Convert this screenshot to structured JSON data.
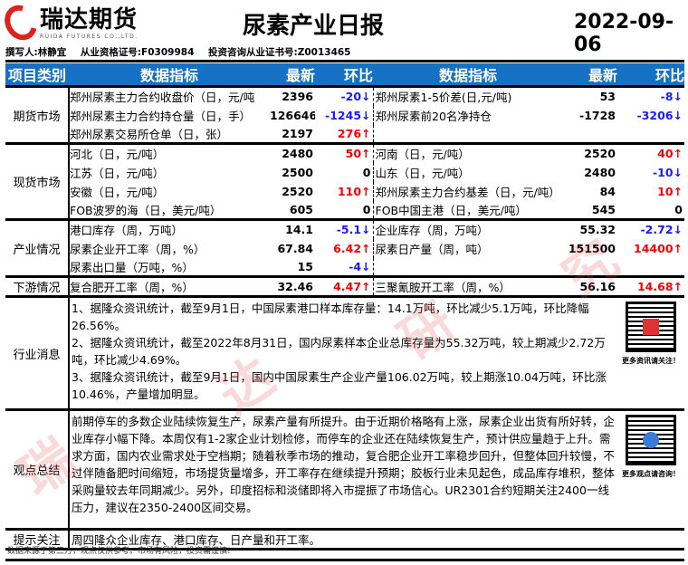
{
  "header": {
    "logo_cn": "瑞达期货",
    "logo_en": "RUIDA FUTURES CO.,LTD.",
    "title": "尿素产业日报",
    "date": "2022-09-06",
    "author": "撰写人:林静宜",
    "qualification": "从业资格证号:F0309984",
    "advisory": "投资咨询从业证书号:Z0013465"
  },
  "columns": {
    "category": "项目类别",
    "metric": "数据指标",
    "latest": "最新",
    "change": "环比"
  },
  "sections": [
    {
      "category": "期货市场",
      "rows": [
        {
          "l": {
            "name": "郑州尿素主力合约收盘价（日，元/吨",
            "value": "2396",
            "change": "-20↓",
            "dir": "down"
          },
          "r": {
            "name": "郑州尿素1-5价差(日,元/吨)",
            "value": "53",
            "change": "-8↓",
            "dir": "down"
          }
        },
        {
          "l": {
            "name": "郑州尿素主力合约持仓量（日，手）",
            "value": "126646",
            "change": "-1245↓",
            "dir": "down"
          },
          "r": {
            "name": "郑州尿素前20名净持仓",
            "value": "-1728",
            "change": "-3206↓",
            "dir": "down"
          }
        },
        {
          "l": {
            "name": "郑州尿素交易所仓单（日，张）",
            "value": "2197",
            "change": "276↑",
            "dir": "up"
          },
          "r": {
            "name": "",
            "value": "",
            "change": "",
            "dir": "flat"
          }
        }
      ]
    },
    {
      "category": "现货市场",
      "rows": [
        {
          "l": {
            "name": "河北（日，元/吨）",
            "value": "2480",
            "change": "50↑",
            "dir": "up"
          },
          "r": {
            "name": "河南（日，元/吨）",
            "value": "2520",
            "change": "40↑",
            "dir": "up"
          }
        },
        {
          "l": {
            "name": "江苏（日，元/吨）",
            "value": "2500",
            "change": "0",
            "dir": "flat"
          },
          "r": {
            "name": "山东（日，元/吨）",
            "value": "2480",
            "change": "-10↓",
            "dir": "down"
          }
        },
        {
          "l": {
            "name": "安徽（日，元/吨）",
            "value": "2520",
            "change": "110↑",
            "dir": "up"
          },
          "r": {
            "name": "郑州尿素主力合约基差（日，元/吨）",
            "value": "84",
            "change": "10↑",
            "dir": "up"
          }
        },
        {
          "l": {
            "name": "FOB波罗的海（日，美元/吨）",
            "value": "605",
            "change": "0",
            "dir": "flat"
          },
          "r": {
            "name": "FOB中国主港（日，美元/吨）",
            "value": "545",
            "change": "0",
            "dir": "flat"
          }
        }
      ]
    },
    {
      "category": "产业情况",
      "rows": [
        {
          "l": {
            "name": "港口库存（周，万吨）",
            "value": "14.1",
            "change": "-5.1↓",
            "dir": "down"
          },
          "r": {
            "name": "企业库存（周，万吨）",
            "value": "55.32",
            "change": "-2.72↓",
            "dir": "down"
          }
        },
        {
          "l": {
            "name": "尿素企业开工率（周，%）",
            "value": "67.84",
            "change": "6.42↑",
            "dir": "up"
          },
          "r": {
            "name": "尿素日产量（周，吨）",
            "value": "151500",
            "change": "14400↑",
            "dir": "up"
          }
        },
        {
          "l": {
            "name": "尿素出口量（万吨，%）",
            "value": "15",
            "change": "-4↓",
            "dir": "down"
          },
          "r": {
            "name": "",
            "value": "",
            "change": "",
            "dir": "flat"
          }
        }
      ]
    },
    {
      "category": "下游情况",
      "rows": [
        {
          "l": {
            "name": "复合肥开工率（周，%）",
            "value": "32.46",
            "change": "4.47↑",
            "dir": "up"
          },
          "r": {
            "name": "三聚氰胺开工率（周，%）",
            "value": "56.16",
            "change": "14.68↑",
            "dir": "up"
          }
        }
      ]
    }
  ],
  "news": {
    "category": "行业消息",
    "items": [
      "1、据隆众资讯统计，截至9月1日，中国尿素港口样本库存量：14.1万吨，环比减少5.1万吨，环比降幅26.56%。",
      "2、据隆众资讯统计，截至2022年8月31日，国内尿素样本企业总库存量为55.32万吨，较上期减少2.72万吨，环比减少4.69%。",
      "3、据隆众资讯统计，截至9月1日，国内中国尿素生产企业产量106.02万吨，较上期涨10.04万吨，环比涨10.46%，产量增加明显。"
    ],
    "qr_caption": "更多资讯请关注！"
  },
  "view": {
    "category": "观点总结",
    "text": "前期停车的多数企业陆续恢复生产，尿素产量有所提升。由于近期价格略有上涨，尿素企业出货有所好转，企业库存小幅下降。本周仅有1-2家企业计划检修，而停车的企业还在陆续恢复生产，预计供应量趋于上升。需求方面，国内农业需求处于空档期；随着秋季市场的推动，复合肥企业开工率稳步回升，但整体回升较慢，不过伴随备肥时间缩短，市场提货量增多，开工率存在继续提升预期；胶板行业未见起色，成品库存堆积，整体采购量较去年同期减少。另外，印度招标和淡储即将入市提振了市场信心。UR2301合约短期关注2400一线压力，建议在2350-2400区间交易。",
    "qr_caption": "更多观点请咨询！"
  },
  "tip": {
    "category": "提示关注",
    "text": "周四隆众企业库存、港口库存、日产量和开工率。"
  },
  "footer": "数据来源于第三方，观点仅供参考。市场有风险，投资需谨慎!",
  "watermark": [
    "瑞",
    "达",
    "研",
    "究"
  ],
  "colors": {
    "header_blue": "#1670c4",
    "up": "#ff0000",
    "down": "#1a1aff",
    "brand_red": "#e0201a"
  }
}
